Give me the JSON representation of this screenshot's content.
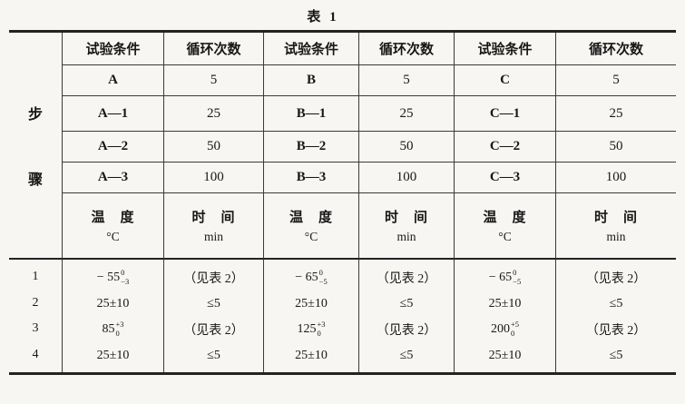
{
  "title": "表 1",
  "colors": {
    "line": "#3a3a3a",
    "thick_line": "#232323",
    "text": "#171717",
    "background": "#f7f6f2"
  },
  "table": {
    "step_chars": [
      "步",
      "骤"
    ],
    "header": [
      "试验条件",
      "循环次数",
      "试验条件",
      "循环次数",
      "试验条件",
      "循环次数"
    ],
    "rows": [
      [
        "A",
        "5",
        "B",
        "5",
        "C",
        "5"
      ],
      [
        "A—1",
        "25",
        "B—1",
        "25",
        "C—1",
        "25"
      ],
      [
        "A—2",
        "50",
        "B—2",
        "50",
        "C—2",
        "50"
      ],
      [
        "A—3",
        "100",
        "B—3",
        "100",
        "C—3",
        "100"
      ]
    ],
    "unit_header": [
      {
        "l1": "温　度",
        "l2": "°C"
      },
      {
        "l1": "时　间",
        "l2": "min"
      },
      {
        "l1": "温　度",
        "l2": "°C"
      },
      {
        "l1": "时　间",
        "l2": "min"
      },
      {
        "l1": "温　度",
        "l2": "°C"
      },
      {
        "l1": "时　间",
        "l2": "min"
      }
    ],
    "step_numbers": [
      "1",
      "2",
      "3",
      "4"
    ],
    "values": [
      [
        {
          "base": "− 55",
          "sup": "0",
          "sub": "−3"
        },
        {
          "text": "25±10"
        },
        {
          "base": "85",
          "sup": "+3",
          "sub": "0"
        },
        {
          "text": "25±10"
        }
      ],
      [
        {
          "text": "（见表 2）"
        },
        {
          "text": "≤5"
        },
        {
          "text": "（见表 2）"
        },
        {
          "text": "≤5"
        }
      ],
      [
        {
          "base": "− 65",
          "sup": "0",
          "sub": "−5"
        },
        {
          "text": "25±10"
        },
        {
          "base": "125",
          "sup": "+3",
          "sub": "0"
        },
        {
          "text": "25±10"
        }
      ],
      [
        {
          "text": "（见表 2）"
        },
        {
          "text": "≤5"
        },
        {
          "text": "（见表 2）"
        },
        {
          "text": "≤5"
        }
      ],
      [
        {
          "base": "− 65",
          "sup": "0",
          "sub": "−5"
        },
        {
          "text": "25±10"
        },
        {
          "base": "200",
          "sup": "+5",
          "sub": "0"
        },
        {
          "text": "25±10"
        }
      ],
      [
        {
          "text": "（见表 2）"
        },
        {
          "text": "≤5"
        },
        {
          "text": "（见表 2）"
        },
        {
          "text": "≤5"
        }
      ]
    ]
  }
}
